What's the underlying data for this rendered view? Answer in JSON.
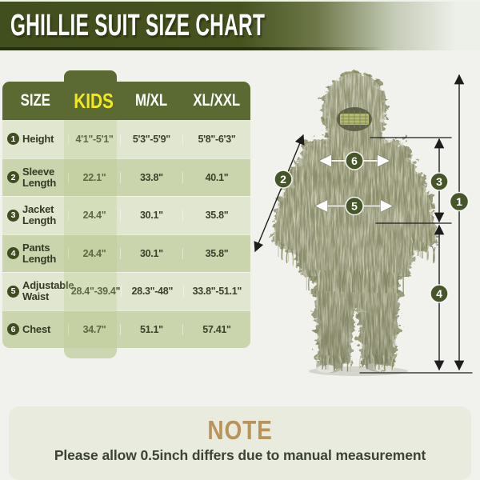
{
  "title": "GHILLIE SUIT SIZE CHART",
  "table": {
    "columns": [
      "SIZE",
      "KIDS",
      "M/XL",
      "XL/XXL"
    ],
    "rows": [
      {
        "num": "1",
        "label": "Height",
        "kids": "4'1\"-5'1\"",
        "mxl": "5'3\"-5'9\"",
        "xlxxl": "5'8\"-6'3\""
      },
      {
        "num": "2",
        "label": "Sleeve Length",
        "kids": "22.1\"",
        "mxl": "33.8\"",
        "xlxxl": "40.1\""
      },
      {
        "num": "3",
        "label": "Jacket Length",
        "kids": "24.4\"",
        "mxl": "30.1\"",
        "xlxxl": "35.8\""
      },
      {
        "num": "4",
        "label": "Pants Length",
        "kids": "24.4\"",
        "mxl": "30.1\"",
        "xlxxl": "35.8\""
      },
      {
        "num": "5",
        "label": "Adjustable Waist",
        "kids": "28.4\"-39.4\"",
        "mxl": "28.3\"-48\"",
        "xlxxl": "33.8\"-51.1\""
      },
      {
        "num": "6",
        "label": "Chest",
        "kids": "34.7\"",
        "mxl": "51.1\"",
        "xlxxl": "57.41\""
      }
    ]
  },
  "figure": {
    "markers": [
      "1",
      "2",
      "3",
      "4",
      "5",
      "6"
    ]
  },
  "note": {
    "title": "NOTE",
    "text": "Please allow 0.5inch differs due to manual measurement"
  },
  "colors": {
    "banner_olive": "#46531f",
    "header_olive": "#5b6a33",
    "kids_yellow": "#f3e81f",
    "row_light": "#e0e6d0",
    "row_dark": "#cad4ad",
    "badge_green": "#3e4c20",
    "marker_green": "#47562a",
    "note_title_gold": "#b8935a"
  }
}
